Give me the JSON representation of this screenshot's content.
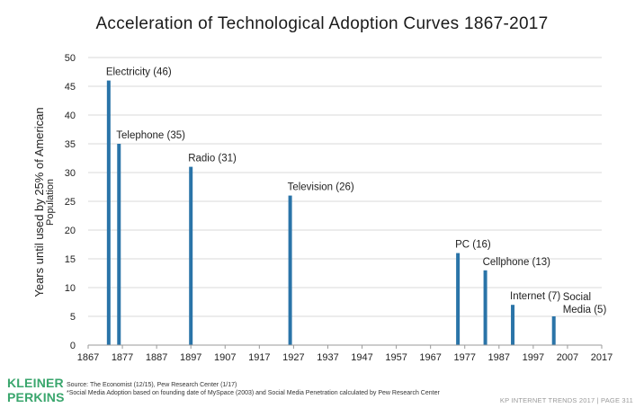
{
  "chart_data": {
    "type": "bar",
    "title": "Acceleration of Technological Adoption Curves 1867-2017",
    "ylabel_line1": "Years until used by 25% of American",
    "ylabel_line2": "Population",
    "xlabel": "",
    "xlim": [
      1867,
      2017
    ],
    "ylim": [
      0,
      50
    ],
    "x_ticks": [
      "1867",
      "1877",
      "1887",
      "1897",
      "1907",
      "1917",
      "1927",
      "1937",
      "1947",
      "1957",
      "1967",
      "1977",
      "1987",
      "1997",
      "2007",
      "2017"
    ],
    "y_ticks": [
      "0",
      "5",
      "10",
      "15",
      "20",
      "25",
      "30",
      "35",
      "40",
      "45",
      "50"
    ],
    "grid": "horizontal",
    "bar_color": "#2a74a8",
    "points": [
      {
        "x": 1873,
        "y": 46,
        "label": "Electricity (46)"
      },
      {
        "x": 1876,
        "y": 35,
        "label": "Telephone (35)"
      },
      {
        "x": 1897,
        "y": 31,
        "label": "Radio (31)"
      },
      {
        "x": 1926,
        "y": 26,
        "label": "Television (26)"
      },
      {
        "x": 1975,
        "y": 16,
        "label": "PC (16)"
      },
      {
        "x": 1983,
        "y": 13,
        "label": "Cellphone (13)"
      },
      {
        "x": 1991,
        "y": 7,
        "label": "Internet (7)"
      },
      {
        "x": 2003,
        "y": 5,
        "label_lines": [
          "Social",
          "Media (5)"
        ]
      }
    ]
  },
  "logo": {
    "line1": "KLEINER",
    "line2": "PERKINS"
  },
  "source": {
    "line1": "Source: The Economist (12/15), Pew Research Center (1/17)",
    "line2": "*Social Media Adoption based on founding date of MySpace (2003) and Social Media Penetration calculated by Pew Research Center"
  },
  "footer": "KP INTERNET TRENDS 2017   |   PAGE 311"
}
